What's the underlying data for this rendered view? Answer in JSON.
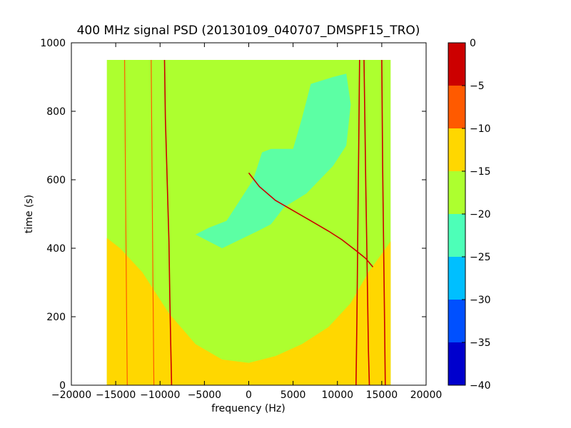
{
  "chart_data": {
    "type": "heatmap",
    "title": "400 MHz signal PSD (20130109_040707_DMSPF15_TRO)",
    "xlabel": "frequency (Hz)",
    "ylabel": "time (s)",
    "xlim": [
      -20000,
      20000
    ],
    "ylim": [
      0,
      1000
    ],
    "xticks": [
      -20000,
      -15000,
      -10000,
      -5000,
      0,
      5000,
      10000,
      15000,
      20000
    ],
    "yticks": [
      0,
      200,
      400,
      600,
      800,
      1000
    ],
    "data_extent": {
      "freq": [
        -16000,
        16000
      ],
      "time": [
        0,
        950
      ]
    },
    "colorbar": {
      "ticks": [
        -40,
        -35,
        -30,
        -25,
        -20,
        -15,
        -10,
        -5,
        0
      ],
      "levels": [
        {
          "range": [
            -40,
            -35
          ],
          "color": "#0000cd"
        },
        {
          "range": [
            -35,
            -30
          ],
          "color": "#0050ff"
        },
        {
          "range": [
            -30,
            -25
          ],
          "color": "#00bfff"
        },
        {
          "range": [
            -25,
            -20
          ],
          "color": "#4dffb8"
        },
        {
          "range": [
            -20,
            -15
          ],
          "color": "#adff2f"
        },
        {
          "range": [
            -15,
            -10
          ],
          "color": "#ffd700"
        },
        {
          "range": [
            -10,
            -5
          ],
          "color": "#ff5a00"
        },
        {
          "range": [
            -5,
            0
          ],
          "color": "#cc0000"
        }
      ]
    },
    "regions": [
      {
        "level": -12.5,
        "boundary": [
          [
            -16000,
            0
          ],
          [
            -16000,
            430
          ],
          [
            -14500,
            400
          ],
          [
            -12000,
            330
          ],
          [
            -9000,
            210
          ],
          [
            -6000,
            120
          ],
          [
            -3000,
            75
          ],
          [
            0,
            65
          ],
          [
            3000,
            85
          ],
          [
            6000,
            120
          ],
          [
            9000,
            170
          ],
          [
            11500,
            240
          ],
          [
            13500,
            330
          ],
          [
            16000,
            420
          ],
          [
            16000,
            0
          ]
        ]
      },
      {
        "level": -22.5,
        "boundary": [
          [
            -1000,
            540
          ],
          [
            500,
            600
          ],
          [
            1500,
            680
          ],
          [
            2500,
            690
          ],
          [
            5000,
            690
          ],
          [
            6000,
            780
          ],
          [
            7000,
            880
          ],
          [
            9500,
            900
          ],
          [
            11000,
            910
          ],
          [
            11500,
            820
          ],
          [
            11000,
            700
          ],
          [
            9500,
            640
          ],
          [
            8000,
            600
          ],
          [
            6500,
            560
          ],
          [
            4000,
            520
          ],
          [
            2500,
            470
          ],
          [
            1000,
            450
          ],
          [
            -3000,
            400
          ],
          [
            -6000,
            440
          ],
          [
            -4500,
            460
          ],
          [
            -2500,
            480
          ]
        ]
      }
    ],
    "lines": [
      {
        "level": -2.5,
        "points": [
          [
            -9500,
            950
          ],
          [
            -9400,
            780
          ],
          [
            -9200,
            600
          ],
          [
            -9000,
            420
          ],
          [
            -8900,
            260
          ],
          [
            -8800,
            120
          ],
          [
            -8700,
            0
          ]
        ]
      },
      {
        "level": -2.5,
        "points": [
          [
            13000,
            950
          ],
          [
            13100,
            760
          ],
          [
            13200,
            580
          ],
          [
            13300,
            420
          ],
          [
            13400,
            260
          ],
          [
            13500,
            100
          ],
          [
            13600,
            0
          ]
        ]
      },
      {
        "level": -2.5,
        "points": [
          [
            12500,
            950
          ],
          [
            12400,
            700
          ],
          [
            12300,
            450
          ],
          [
            12200,
            200
          ],
          [
            12100,
            0
          ]
        ]
      },
      {
        "level": -2.5,
        "points": [
          [
            15000,
            950
          ],
          [
            15100,
            640
          ],
          [
            15200,
            420
          ],
          [
            15300,
            220
          ],
          [
            15400,
            0
          ]
        ]
      },
      {
        "level": -7.5,
        "points": [
          [
            -14000,
            950
          ],
          [
            -13900,
            600
          ],
          [
            -13800,
            300
          ],
          [
            -13700,
            0
          ]
        ]
      },
      {
        "level": -7.5,
        "points": [
          [
            -11000,
            950
          ],
          [
            -10900,
            600
          ],
          [
            -10800,
            300
          ],
          [
            -10700,
            0
          ]
        ]
      },
      {
        "level": -2.5,
        "points": [
          [
            0,
            620
          ],
          [
            1200,
            580
          ],
          [
            3000,
            540
          ],
          [
            5000,
            510
          ],
          [
            7000,
            480
          ],
          [
            9000,
            450
          ],
          [
            10500,
            425
          ],
          [
            12000,
            395
          ],
          [
            13200,
            370
          ],
          [
            14000,
            345
          ]
        ]
      }
    ]
  }
}
